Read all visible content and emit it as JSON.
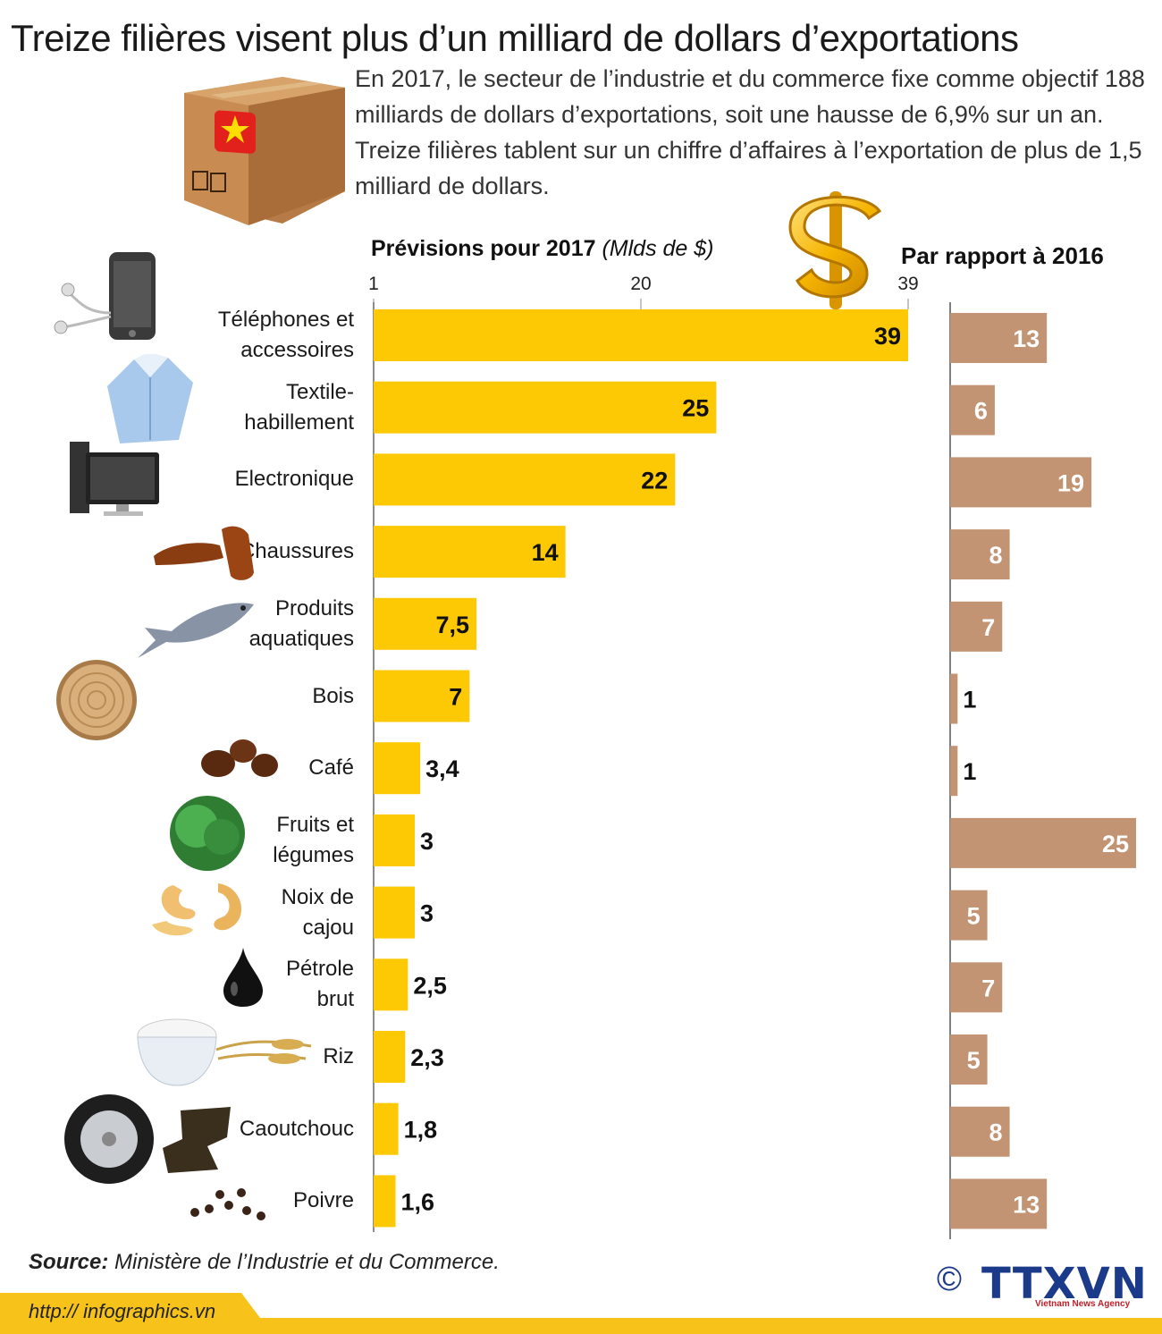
{
  "title": "Treize filières visent plus d’un milliard de dollars d’exportations",
  "intro": "En 2017, le secteur de l’industrie et du commerce fixe comme objectif 188 milliards de dollars d’exportations, soit une hausse de 6,9% sur un an. Treize filières tablent sur un chiffre d’affaires à l’exportation de plus de 1,5 milliard de dollars.",
  "source_label": "Source:",
  "source_text": " Ministère de l’Industrie et du Commerce.",
  "url": "http:// infographics.vn",
  "copyright": "©",
  "logo": "TTXVN",
  "logo_sub": "Vietnam News Agency",
  "colors": {
    "forecast": "#fdc904",
    "change": "#c29473",
    "footer": "#f7c31b",
    "logo": "#1c3a8a"
  },
  "chart_data": {
    "type": "bar",
    "orientation": "horizontal",
    "title_main": "Prévisions pour 2017",
    "title_unit": "(Mlds de $)",
    "title_right": "Par rapport à 2016",
    "xlim": [
      1,
      39
    ],
    "xticks": [
      {
        "value": 1,
        "label": "1"
      },
      {
        "value": 20,
        "label": "20"
      },
      {
        "value": 39,
        "label": "39"
      }
    ],
    "categories": [
      "Téléphones et accessoires",
      "Textile-habillement",
      "Electronique",
      "Chaussures",
      "Produits aquatiques",
      "Bois",
      "Café",
      "Fruits et légumes",
      "Noix de cajou",
      "Pétrole brut",
      "Riz",
      "Caoutchouc",
      "Poivre"
    ],
    "series": [
      {
        "name": "Prévisions pour 2017",
        "values": [
          39,
          25,
          22,
          14,
          7.5,
          7,
          3.4,
          3,
          3,
          2.5,
          2.3,
          1.8,
          1.6
        ],
        "labels": [
          "39",
          "25",
          "22",
          "14",
          "7,5",
          "7",
          "3,4",
          "3",
          "3",
          "2,5",
          "2,3",
          "1,8",
          "1,6"
        ]
      },
      {
        "name": "Par rapport à 2016",
        "values": [
          13,
          6,
          19,
          8,
          7,
          1,
          1,
          25,
          5,
          7,
          5,
          8,
          13
        ],
        "labels": [
          "13",
          "6",
          "19",
          "8",
          "7",
          "1",
          "1",
          "25",
          "5",
          "7",
          "5",
          "8",
          "13"
        ]
      }
    ]
  }
}
